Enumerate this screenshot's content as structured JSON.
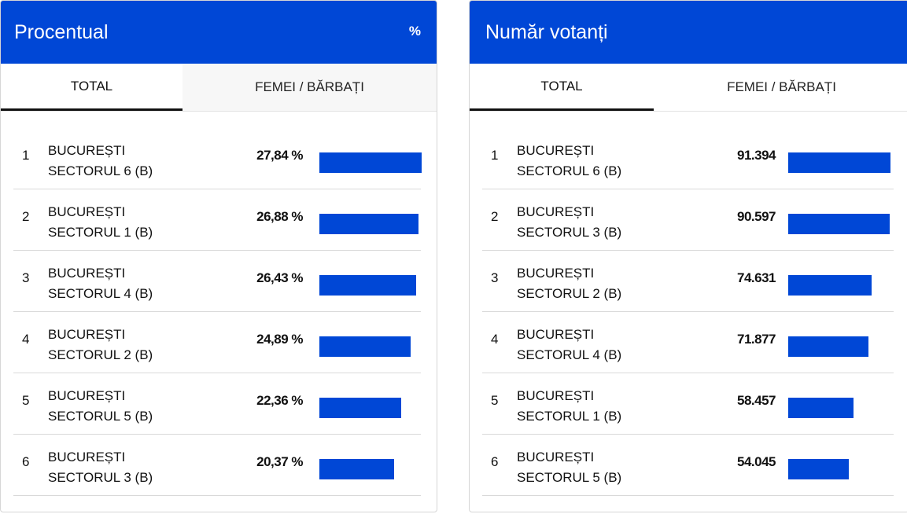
{
  "colors": {
    "accent": "#0047d6"
  },
  "panels": [
    {
      "title": "Procentual",
      "unit": "%",
      "tabs": [
        {
          "label": "TOTAL",
          "active": true
        },
        {
          "label": "FEMEI / BĂRBAȚI",
          "active": false
        }
      ],
      "rows": [
        {
          "rank": "1",
          "line1": "BUCUREȘTI",
          "line2": "SECTORUL 6 (B)",
          "value": "27,84 %",
          "num": 27.84
        },
        {
          "rank": "2",
          "line1": "BUCUREȘTI",
          "line2": "SECTORUL 1 (B)",
          "value": "26,88 %",
          "num": 26.88
        },
        {
          "rank": "3",
          "line1": "BUCUREȘTI",
          "line2": "SECTORUL 4 (B)",
          "value": "26,43 %",
          "num": 26.43
        },
        {
          "rank": "4",
          "line1": "BUCUREȘTI",
          "line2": "SECTORUL 2 (B)",
          "value": "24,89 %",
          "num": 24.89
        },
        {
          "rank": "5",
          "line1": "BUCUREȘTI",
          "line2": "SECTORUL 5 (B)",
          "value": "22,36 %",
          "num": 22.36
        },
        {
          "rank": "6",
          "line1": "BUCUREȘTI",
          "line2": "SECTORUL 3 (B)",
          "value": "20,37 %",
          "num": 20.37
        }
      ]
    },
    {
      "title": "Număr votanți",
      "unit": "",
      "tabs": [
        {
          "label": "TOTAL",
          "active": true
        },
        {
          "label": "FEMEI / BĂRBAȚI",
          "active": false
        }
      ],
      "rows": [
        {
          "rank": "1",
          "line1": "BUCUREȘTI",
          "line2": "SECTORUL 6 (B)",
          "value": "91.394",
          "num": 91394
        },
        {
          "rank": "2",
          "line1": "BUCUREȘTI",
          "line2": "SECTORUL 3 (B)",
          "value": "90.597",
          "num": 90597
        },
        {
          "rank": "3",
          "line1": "BUCUREȘTI",
          "line2": "SECTORUL 2 (B)",
          "value": "74.631",
          "num": 74631
        },
        {
          "rank": "4",
          "line1": "BUCUREȘTI",
          "line2": "SECTORUL 4 (B)",
          "value": "71.877",
          "num": 71877
        },
        {
          "rank": "5",
          "line1": "BUCUREȘTI",
          "line2": "SECTORUL 1 (B)",
          "value": "58.457",
          "num": 58457
        },
        {
          "rank": "6",
          "line1": "BUCUREȘTI",
          "line2": "SECTORUL 5 (B)",
          "value": "54.045",
          "num": 54045
        }
      ]
    }
  ]
}
